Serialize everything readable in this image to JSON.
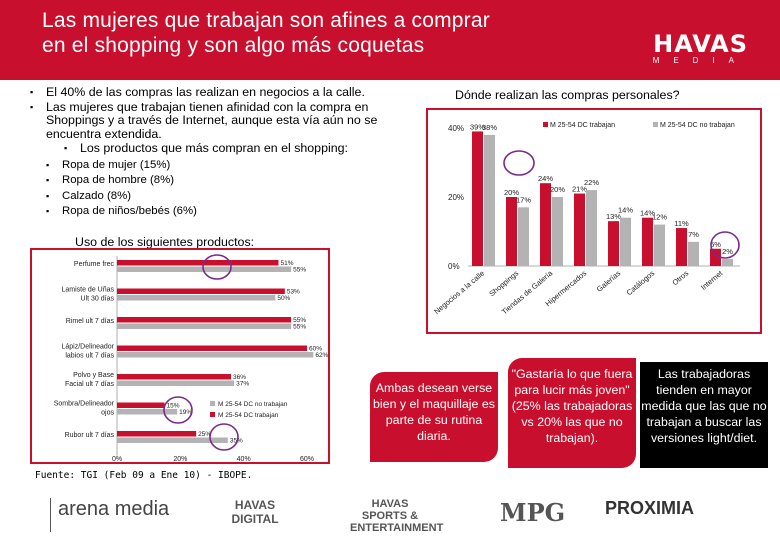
{
  "header": {
    "title_line1": "Las mujeres que trabajan son afines a comprar",
    "title_line2": "en el shopping y son algo más coquetas",
    "logo": "HAVAS",
    "logo_sub": "MEDIA"
  },
  "bullets": {
    "b1": "El 40% de las compras las realizan en negocios a la calle.",
    "b2": "Las mujeres que trabajan tienen afinidad con la compra en Shoppings y a través de Internet, aunque esta vía aún no se encuentra extendida.",
    "b3": "Los productos que más compran en el shopping:",
    "items": [
      "Ropa de mujer (15%)",
      "Ropa de hombre (8%)",
      "Calzado (8%)",
      "Ropa de niños/bebés (6%)"
    ]
  },
  "uso_title": "Uso de los siguientes productos:",
  "donde_title": "Dónde realizan las compras personales?",
  "callouts": {
    "ambas": "Ambas desean verse bien y el maquillaje es parte de su rutina diaria.",
    "gustaria": "\"Gastaría lo que fuera para lucir más joven\" (25% las trabajadoras vs 20% las que no trabajan).",
    "trabajadoras": "Las trabajadoras tienden en mayor medida que las que no trabajan a buscar las versiones light/diet."
  },
  "footer": "Fuente: TGI (Feb 09 a Ene 10) - IBOPE.",
  "bottom_logos": [
    "arena media",
    "HAVAS DIGITAL",
    "HAVAS SPORTS & ENTERTAINMENT",
    "MPG",
    "PROXIMIA"
  ],
  "colors": {
    "red": "#c8102e",
    "gray": "#b3b3b3",
    "purple": "#7a2a8a"
  },
  "chart_data": [
    {
      "type": "bar",
      "orientation": "horizontal",
      "title": "Uso de los siguientes productos:",
      "categories": [
        "Perfume frec",
        "Lamiste de Uñas Ult 30 días",
        "Rimel ult 7 días",
        "Lápiz/Delineador labios ult 7 días",
        "Polvo y Base Facial ult 7 días",
        "Sombra/Delineador ojos",
        "Rubor ult 7 días"
      ],
      "series": [
        {
          "name": "M 25-54 DC trabajan",
          "values": [
            51,
            53,
            55,
            60,
            36,
            15,
            25
          ]
        },
        {
          "name": "M 25-54 DC no trabajan",
          "values": [
            55,
            50,
            55,
            62,
            37,
            19,
            35
          ]
        }
      ],
      "value_labels": [
        [
          "51%",
          "53%",
          "55%",
          "60%",
          "36%",
          "15%",
          "25%"
        ],
        [
          "55%",
          "50%",
          "55%",
          "62%",
          "37%",
          "19%",
          "35%"
        ]
      ],
      "xticks": [
        "0%",
        "20%",
        "40%",
        "60%"
      ],
      "xlim": [
        0,
        60
      ]
    },
    {
      "type": "bar",
      "title": "Dónde realizan las compras personales?",
      "categories": [
        "Negocios a la calle",
        "Shoppings",
        "Tiendas de Galería",
        "Hipermercados",
        "Galerías",
        "Catálogos",
        "Otros",
        "Internet"
      ],
      "series": [
        {
          "name": "M 25-54 DC trabajan",
          "values": [
            39,
            20,
            24,
            21,
            13,
            14,
            11,
            5
          ]
        },
        {
          "name": "M 25-54 DC no trabajan",
          "values": [
            38,
            17,
            20,
            22,
            14,
            12,
            7,
            2
          ]
        }
      ],
      "value_labels": [
        [
          "39%",
          "20%",
          "24%",
          "21%",
          "13%",
          "14%",
          "11%",
          "5%"
        ],
        [
          "38%",
          "17%",
          "20%",
          "22%",
          "14%",
          "12%",
          "7%",
          "2%"
        ]
      ],
      "yticks": [
        "0%",
        "20%",
        "40%"
      ],
      "ylim": [
        0,
        40
      ]
    }
  ]
}
